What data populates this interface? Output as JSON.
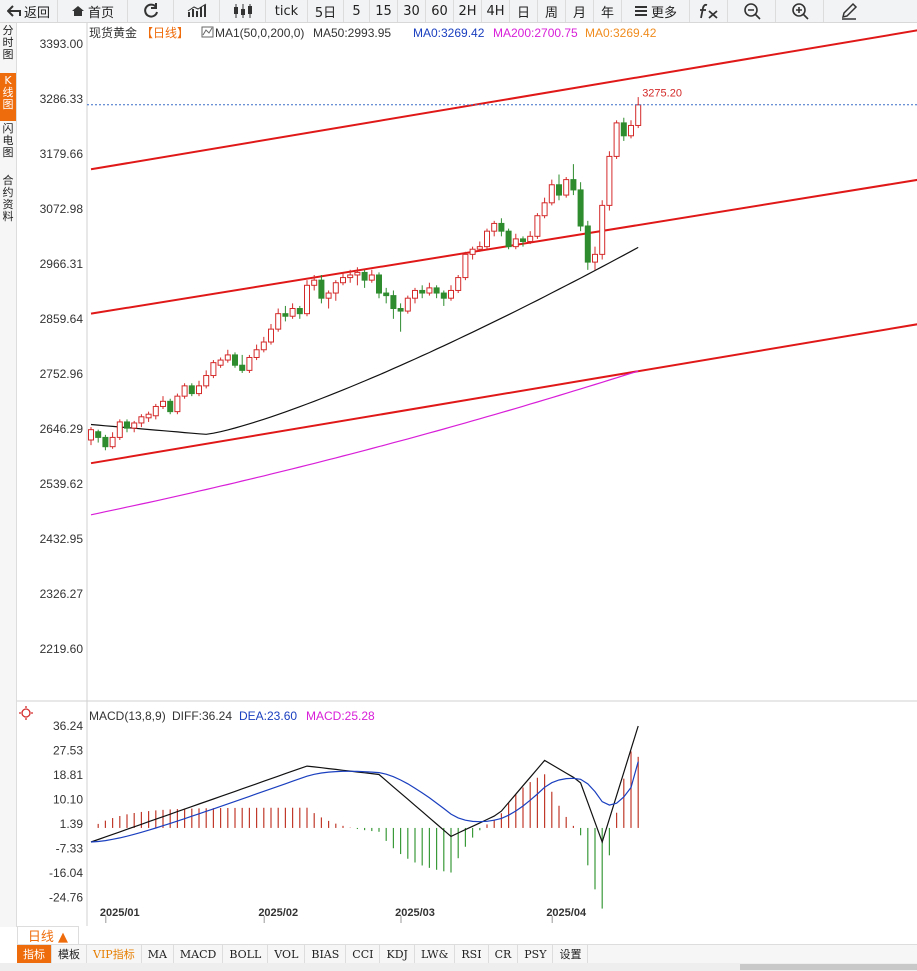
{
  "toolbar": {
    "back": "返回",
    "home": "首页",
    "tick": "tick",
    "periods": [
      "5日",
      "5",
      "15",
      "30",
      "60",
      "2H",
      "4H",
      "日",
      "周",
      "月",
      "年"
    ],
    "more": "更多"
  },
  "side_tabs": [
    "分时图",
    "K线图",
    "闪电图",
    "合约资料"
  ],
  "legend": {
    "name": "现货黄金",
    "period": "【日线】",
    "ma_text": "MA1(50,0,200,0)",
    "ma50": "MA50:2993.95",
    "ma0": "MA0:3269.42",
    "ma200": "MA200:2700.75",
    "ma0b": "MA0:3269.42"
  },
  "price_axis": [
    "3393.00",
    "3286.33",
    "3179.66",
    "3072.98",
    "2966.31",
    "2859.64",
    "2752.96",
    "2646.29",
    "2539.62",
    "2432.95",
    "2326.27",
    "2219.60"
  ],
  "last_price": "3275.20",
  "macd_legend": {
    "name": "MACD(13,8,9)",
    "diff": "DIFF:36.24",
    "dea": "DEA:23.60",
    "macd": "MACD:25.28"
  },
  "macd_axis": [
    "36.24",
    "27.53",
    "18.81",
    "10.10",
    "1.39",
    "-7.33",
    "-16.04",
    "-24.76"
  ],
  "date_labels": [
    "2025/01",
    "2025/02",
    "2025/03",
    "2025/04"
  ],
  "period_button": "日线 ▲",
  "indicators": [
    "指标",
    "模板",
    "VIP指标",
    "MA",
    "MACD",
    "BOLL",
    "VOL",
    "BIAS",
    "CCI",
    "KDJ",
    "LW&",
    "RSI",
    "CR",
    "PSY",
    "设置"
  ],
  "colors": {
    "up": "#d42a2a",
    "down": "#2e8b2e",
    "ma50": "#111111",
    "ma200": "#d81ed8",
    "trend": "#e01818",
    "accent": "#ef6c0c",
    "dea": "#1a3fbf"
  },
  "chart_data": {
    "type": "candlestick",
    "instrument": "现货黄金",
    "period": "日线",
    "ylim": [
      2170,
      3420
    ],
    "x_labels": [
      "2025/01",
      "2025/02",
      "2025/03",
      "2025/04"
    ],
    "last_price": 3275.2,
    "candles": [
      [
        2625,
        2645,
        2615,
        2650
      ],
      [
        2641,
        2630,
        2620,
        2645
      ],
      [
        2630,
        2612,
        2605,
        2635
      ],
      [
        2612,
        2630,
        2608,
        2640
      ],
      [
        2630,
        2660,
        2625,
        2665
      ],
      [
        2660,
        2648,
        2640,
        2665
      ],
      [
        2648,
        2658,
        2640,
        2662
      ],
      [
        2658,
        2670,
        2650,
        2675
      ],
      [
        2668,
        2675,
        2660,
        2680
      ],
      [
        2672,
        2690,
        2665,
        2695
      ],
      [
        2690,
        2700,
        2685,
        2710
      ],
      [
        2700,
        2680,
        2675,
        2705
      ],
      [
        2680,
        2710,
        2675,
        2715
      ],
      [
        2710,
        2730,
        2705,
        2735
      ],
      [
        2730,
        2715,
        2710,
        2735
      ],
      [
        2715,
        2730,
        2710,
        2740
      ],
      [
        2730,
        2750,
        2725,
        2760
      ],
      [
        2750,
        2775,
        2745,
        2780
      ],
      [
        2770,
        2780,
        2765,
        2785
      ],
      [
        2780,
        2790,
        2775,
        2800
      ],
      [
        2790,
        2770,
        2765,
        2795
      ],
      [
        2770,
        2760,
        2755,
        2790
      ],
      [
        2760,
        2785,
        2755,
        2790
      ],
      [
        2785,
        2800,
        2780,
        2810
      ],
      [
        2800,
        2815,
        2795,
        2825
      ],
      [
        2815,
        2840,
        2810,
        2850
      ],
      [
        2840,
        2870,
        2835,
        2880
      ],
      [
        2870,
        2865,
        2855,
        2885
      ],
      [
        2865,
        2880,
        2860,
        2890
      ],
      [
        2880,
        2870,
        2860,
        2885
      ],
      [
        2870,
        2925,
        2865,
        2935
      ],
      [
        2925,
        2935,
        2915,
        2945
      ],
      [
        2935,
        2900,
        2890,
        2945
      ],
      [
        2900,
        2910,
        2880,
        2915
      ],
      [
        2910,
        2930,
        2895,
        2935
      ],
      [
        2930,
        2940,
        2925,
        2950
      ],
      [
        2940,
        2945,
        2930,
        2955
      ],
      [
        2945,
        2950,
        2925,
        2960
      ],
      [
        2950,
        2935,
        2920,
        2955
      ],
      [
        2935,
        2945,
        2930,
        2955
      ],
      [
        2945,
        2910,
        2900,
        2950
      ],
      [
        2910,
        2905,
        2890,
        2920
      ],
      [
        2905,
        2880,
        2860,
        2915
      ],
      [
        2880,
        2875,
        2835,
        2890
      ],
      [
        2875,
        2900,
        2870,
        2905
      ],
      [
        2900,
        2915,
        2890,
        2920
      ],
      [
        2915,
        2910,
        2900,
        2925
      ],
      [
        2910,
        2920,
        2905,
        2930
      ],
      [
        2920,
        2910,
        2900,
        2925
      ],
      [
        2910,
        2900,
        2885,
        2915
      ],
      [
        2900,
        2915,
        2895,
        2925
      ],
      [
        2915,
        2940,
        2910,
        2945
      ],
      [
        2940,
        2985,
        2935,
        2990
      ],
      [
        2985,
        2995,
        2975,
        3000
      ],
      [
        2995,
        3000,
        2990,
        3010
      ],
      [
        3000,
        3030,
        2995,
        3035
      ],
      [
        3030,
        3045,
        3020,
        3050
      ],
      [
        3045,
        3030,
        3020,
        3055
      ],
      [
        3030,
        3000,
        2995,
        3035
      ],
      [
        3000,
        3015,
        2995,
        3025
      ],
      [
        3015,
        3010,
        3000,
        3020
      ],
      [
        3010,
        3020,
        3005,
        3030
      ],
      [
        3020,
        3060,
        3015,
        3065
      ],
      [
        3060,
        3085,
        3055,
        3095
      ],
      [
        3085,
        3120,
        3080,
        3130
      ],
      [
        3120,
        3100,
        3090,
        3140
      ],
      [
        3100,
        3130,
        3095,
        3135
      ],
      [
        3130,
        3110,
        3100,
        3160
      ],
      [
        3110,
        3040,
        3030,
        3125
      ],
      [
        3040,
        2970,
        2955,
        3050
      ],
      [
        2970,
        2985,
        2955,
        3000
      ],
      [
        2985,
        3080,
        2975,
        3090
      ],
      [
        3080,
        3175,
        3070,
        3185
      ],
      [
        3175,
        3240,
        3170,
        3245
      ],
      [
        3240,
        3215,
        3205,
        3250
      ],
      [
        3215,
        3235,
        3210,
        3245
      ],
      [
        3235,
        3275,
        3230,
        3290
      ]
    ],
    "trend_lines": [
      {
        "start": [
          0,
          3150
        ],
        "end": [
          115,
          3420
        ]
      },
      {
        "start": [
          0,
          2870
        ],
        "end": [
          115,
          3130
        ]
      },
      {
        "start": [
          0,
          2580
        ],
        "end": [
          115,
          2850
        ]
      }
    ],
    "macd": {
      "ylim": [
        -32,
        40
      ],
      "dif_first": -5,
      "dif_last": 36.24,
      "dea_last": 23.6,
      "macd_last": 25.28
    }
  }
}
